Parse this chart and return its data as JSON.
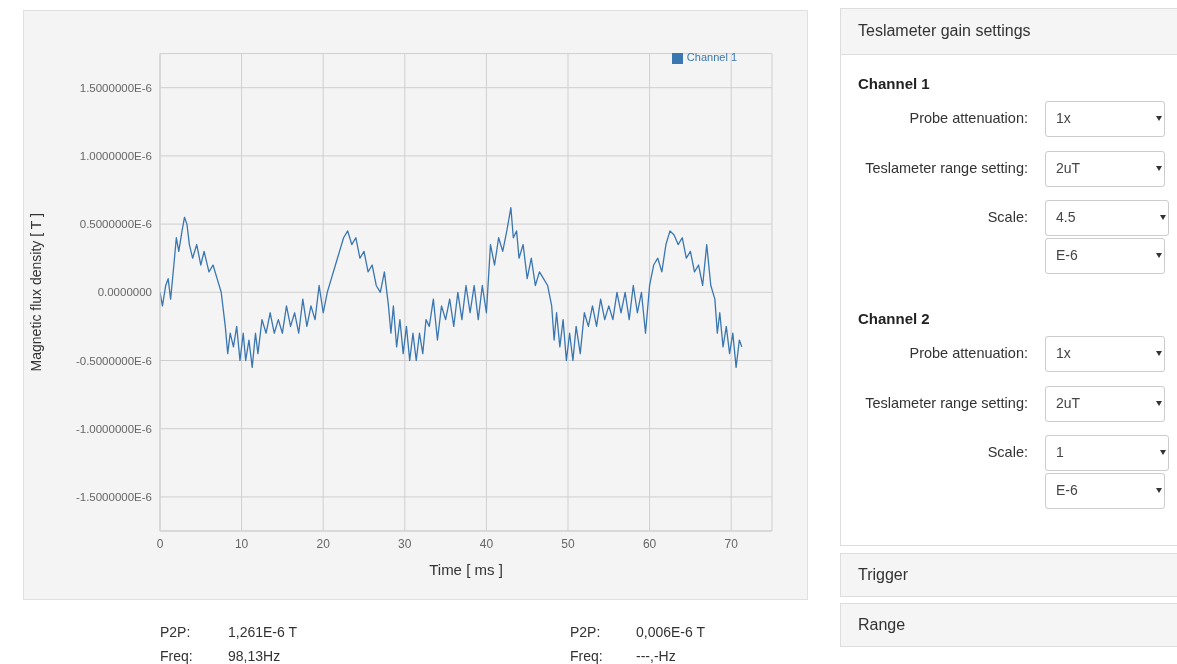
{
  "chart_data": [
    {
      "type": "line",
      "xlabel": "Time [ ms ]",
      "ylabel": "Magnetic flux density [ T ]",
      "legend": "top right",
      "grid": true,
      "marker": "none",
      "line_style": "solid",
      "xlim": [
        0,
        75
      ],
      "xticks": [
        0,
        10,
        20,
        30,
        40,
        50,
        60,
        70
      ],
      "ylim": [
        -1.75e-06,
        1.75e-06
      ],
      "yticks": [
        {
          "value": -1.5e-06,
          "label": "-1.5000000E-6"
        },
        {
          "value": -1e-06,
          "label": "-1.0000000E-6"
        },
        {
          "value": -5e-07,
          "label": "-0.5000000E-6"
        },
        {
          "value": 0,
          "label": "0.0000000"
        },
        {
          "value": 5e-07,
          "label": "0.5000000E-6"
        },
        {
          "value": 1e-06,
          "label": "1.0000000E-6"
        },
        {
          "value": 1.5e-06,
          "label": "1.5000000E-6"
        }
      ],
      "annotations": [
        "P2P:",
        "1,261E-6 T",
        "Freq:",
        "98,13Hz",
        "P2P:",
        "0,006E-6 T",
        "Freq:",
        "---,-Hz"
      ],
      "x": [
        0,
        0.3,
        0.7,
        1,
        1.3,
        1.7,
        2,
        2.3,
        2.7,
        3,
        3.3,
        3.6,
        4,
        4.5,
        5,
        5.4,
        6,
        6.5,
        7,
        7.5,
        8,
        8.3,
        8.6,
        9,
        9.4,
        9.8,
        10.2,
        10.5,
        10.9,
        11.3,
        11.7,
        12,
        12.5,
        13,
        13.5,
        14,
        14.5,
        15,
        15.5,
        16,
        16.5,
        17,
        17.5,
        18,
        18.5,
        19,
        19.5,
        20,
        20.5,
        21,
        21.5,
        22,
        22.5,
        23,
        23.5,
        24,
        24.5,
        25,
        25.5,
        26,
        26.5,
        27,
        27.5,
        28,
        28.3,
        28.6,
        29,
        29.4,
        29.8,
        30.2,
        30.6,
        31,
        31.4,
        31.8,
        32.2,
        32.6,
        33,
        33.5,
        34,
        34.5,
        35,
        35.5,
        36,
        36.5,
        37,
        37.5,
        38,
        38.5,
        39,
        39.5,
        40,
        40.5,
        41,
        41.5,
        42,
        42.5,
        43,
        43.3,
        43.7,
        44,
        44.5,
        45,
        45.5,
        46,
        46.5,
        47,
        47.5,
        48,
        48.3,
        48.6,
        49,
        49.4,
        49.8,
        50.2,
        50.6,
        51,
        51.5,
        52,
        52.5,
        53,
        53.5,
        54,
        54.5,
        55,
        55.5,
        56,
        56.5,
        57,
        57.5,
        58,
        58.5,
        59,
        59.5,
        60,
        60.5,
        61,
        61.5,
        62,
        62.5,
        63,
        63.5,
        64,
        64.5,
        65,
        65.5,
        66,
        66.5,
        67,
        67.5,
        68,
        68.3,
        68.6,
        69,
        69.4,
        69.8,
        70.2,
        70.6,
        71,
        71.3
      ],
      "series": [
        {
          "name": "Channel 1",
          "color": "#3a76b0",
          "values": [
            0,
            -1e-07,
            5e-08,
            1e-07,
            -5e-08,
            2e-07,
            4e-07,
            3e-07,
            4.5e-07,
            5.5e-07,
            5e-07,
            3.5e-07,
            2.5e-07,
            3.5e-07,
            2e-07,
            3e-07,
            1.5e-07,
            2e-07,
            1e-07,
            0,
            -2.5e-07,
            -4.5e-07,
            -3e-07,
            -4e-07,
            -2.5e-07,
            -5e-07,
            -3e-07,
            -5e-07,
            -3.5e-07,
            -5.5e-07,
            -3e-07,
            -4.5e-07,
            -2e-07,
            -3e-07,
            -1.5e-07,
            -3e-07,
            -2e-07,
            -3e-07,
            -1e-07,
            -2.5e-07,
            -1.5e-07,
            -3e-07,
            -5e-08,
            -2.5e-07,
            -1e-07,
            -2e-07,
            5e-08,
            -1.5e-07,
            0,
            1e-07,
            2e-07,
            3e-07,
            4e-07,
            4.5e-07,
            3.5e-07,
            4e-07,
            2.5e-07,
            3e-07,
            1.5e-07,
            2e-07,
            5e-08,
            0,
            1.5e-07,
            -1e-07,
            -3e-07,
            -1e-07,
            -4e-07,
            -2e-07,
            -4.5e-07,
            -2.5e-07,
            -5e-07,
            -3e-07,
            -5e-07,
            -3e-07,
            -4.5e-07,
            -2e-07,
            -2.5e-07,
            -5e-08,
            -3.5e-07,
            -1e-07,
            -2e-07,
            -5e-08,
            -2.5e-07,
            0,
            -2e-07,
            5e-08,
            -1.5e-07,
            5e-08,
            -2e-07,
            5e-08,
            -1.5e-07,
            3.5e-07,
            2e-07,
            4e-07,
            3e-07,
            4.5e-07,
            6.2e-07,
            4e-07,
            4.5e-07,
            2.5e-07,
            3.5e-07,
            1e-07,
            2.5e-07,
            5e-08,
            1.5e-07,
            1e-07,
            5e-08,
            -1e-07,
            -3.5e-07,
            -1.5e-07,
            -4e-07,
            -2e-07,
            -5e-07,
            -3e-07,
            -5e-07,
            -2.5e-07,
            -4.5e-07,
            -1.5e-07,
            -2.5e-07,
            -1e-07,
            -2.5e-07,
            -5e-08,
            -2e-07,
            -1e-07,
            -2e-07,
            0,
            -1.5e-07,
            0,
            -2e-07,
            5e-08,
            -1.5e-07,
            0,
            -3e-07,
            5e-08,
            2e-07,
            2.5e-07,
            1.5e-07,
            3.5e-07,
            4.5e-07,
            4.2e-07,
            3.5e-07,
            4e-07,
            2.5e-07,
            3e-07,
            1.5e-07,
            2e-07,
            5e-08,
            3.5e-07,
            5e-08,
            -5e-08,
            -3e-07,
            -1.5e-07,
            -4e-07,
            -2.5e-07,
            -4.5e-07,
            -3e-07,
            -5.5e-07,
            -3.5e-07,
            -4e-07
          ]
        }
      ]
    },
    {
      "type": "other",
      "title": "Teslameter gain settings",
      "annotations": [
        "Channel 1",
        "Probe attenuation:",
        "1x",
        "Teslameter range setting:",
        "2uT",
        "Scale:",
        "4.5",
        "E-6",
        "Channel 2",
        "Probe attenuation:",
        "1x",
        "Teslameter range setting:",
        "2uT",
        "Scale:",
        "1",
        "E-6",
        "Trigger",
        "Range"
      ]
    }
  ]
}
